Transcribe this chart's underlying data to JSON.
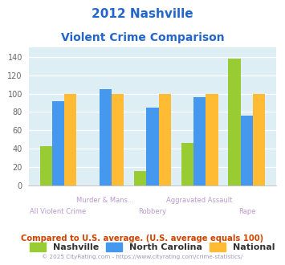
{
  "title_line1": "2012 Nashville",
  "title_line2": "Violent Crime Comparison",
  "categories": [
    "All Violent Crime",
    "Murder & Mans...",
    "Robbery",
    "Aggravated Assault",
    "Rape"
  ],
  "nashville": [
    43,
    0,
    16,
    46,
    138
  ],
  "north_carolina": [
    92,
    105,
    85,
    96,
    76
  ],
  "national": [
    100,
    100,
    100,
    100,
    100
  ],
  "nashville_color": "#99cc33",
  "nc_color": "#4499ee",
  "national_color": "#ffbb33",
  "ylim": [
    0,
    150
  ],
  "yticks": [
    0,
    20,
    40,
    60,
    80,
    100,
    120,
    140
  ],
  "bg_color": "#ddeef5",
  "title_color": "#2266cc",
  "xlabel_top_color": "#bb99cc",
  "xlabel_bot_color": "#bb99cc",
  "footer_text": "Compared to U.S. average. (U.S. average equals 100)",
  "copyright_text": "© 2025 CityRating.com - https://www.cityrating.com/crime-statistics/",
  "footer_color": "#cc4400",
  "copyright_color": "#9999bb",
  "legend_labels": [
    "Nashville",
    "North Carolina",
    "National"
  ],
  "legend_text_color": "#333333"
}
